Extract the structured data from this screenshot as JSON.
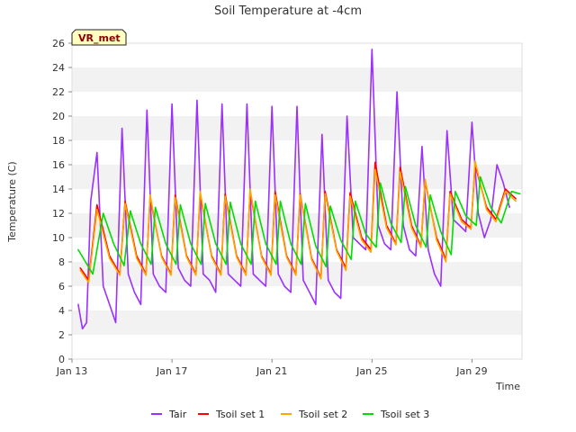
{
  "chart_data": {
    "type": "line",
    "title": "Soil Temperature at -4cm",
    "xlabel": "Time",
    "ylabel": "Temperature (C)",
    "ylim": [
      0,
      26
    ],
    "xlim": [
      "2024-01-13",
      "2024-01-31"
    ],
    "y_ticks": [
      0,
      2,
      4,
      6,
      8,
      10,
      12,
      14,
      16,
      18,
      20,
      22,
      24,
      26
    ],
    "x_ticks": [
      {
        "at": "2024-01-13",
        "label": "Jan 13"
      },
      {
        "at": "2024-01-17",
        "label": "Jan 17"
      },
      {
        "at": "2024-01-21",
        "label": "Jan 21"
      },
      {
        "at": "2024-01-25",
        "label": "Jan 25"
      },
      {
        "at": "2024-01-29",
        "label": "Jan 29"
      }
    ],
    "grid": "horizontal bands",
    "legend_position": "bottom",
    "badge": "VR_met",
    "series": [
      {
        "name": "Tair",
        "color": "#9b30ff",
        "points": [
          [
            "2024-01-13 06:00",
            4.5
          ],
          [
            "2024-01-13 10:00",
            2.5
          ],
          [
            "2024-01-13 14:00",
            3.0
          ],
          [
            "2024-01-13 18:00",
            13.0
          ],
          [
            "2024-01-14 00:00",
            17.0
          ],
          [
            "2024-01-14 06:00",
            6.0
          ],
          [
            "2024-01-14 12:00",
            4.5
          ],
          [
            "2024-01-14 18:00",
            3.0
          ],
          [
            "2024-01-15 00:00",
            19.0
          ],
          [
            "2024-01-15 06:00",
            7.0
          ],
          [
            "2024-01-15 12:00",
            5.5
          ],
          [
            "2024-01-15 18:00",
            4.5
          ],
          [
            "2024-01-16 00:00",
            20.5
          ],
          [
            "2024-01-16 06:00",
            7.0
          ],
          [
            "2024-01-16 12:00",
            6.0
          ],
          [
            "2024-01-16 18:00",
            5.5
          ],
          [
            "2024-01-17 00:00",
            21.0
          ],
          [
            "2024-01-17 06:00",
            7.5
          ],
          [
            "2024-01-17 12:00",
            6.5
          ],
          [
            "2024-01-17 18:00",
            6.0
          ],
          [
            "2024-01-18 00:00",
            21.3
          ],
          [
            "2024-01-18 06:00",
            7.0
          ],
          [
            "2024-01-18 12:00",
            6.5
          ],
          [
            "2024-01-18 18:00",
            5.5
          ],
          [
            "2024-01-19 00:00",
            21.0
          ],
          [
            "2024-01-19 06:00",
            7.0
          ],
          [
            "2024-01-19 12:00",
            6.5
          ],
          [
            "2024-01-19 18:00",
            6.0
          ],
          [
            "2024-01-20 00:00",
            21.0
          ],
          [
            "2024-01-20 06:00",
            7.0
          ],
          [
            "2024-01-20 12:00",
            6.5
          ],
          [
            "2024-01-20 18:00",
            6.0
          ],
          [
            "2024-01-21 00:00",
            20.8
          ],
          [
            "2024-01-21 06:00",
            7.0
          ],
          [
            "2024-01-21 12:00",
            6.0
          ],
          [
            "2024-01-21 18:00",
            5.5
          ],
          [
            "2024-01-22 00:00",
            20.8
          ],
          [
            "2024-01-22 06:00",
            6.5
          ],
          [
            "2024-01-22 12:00",
            5.5
          ],
          [
            "2024-01-22 18:00",
            4.5
          ],
          [
            "2024-01-23 00:00",
            18.5
          ],
          [
            "2024-01-23 06:00",
            6.5
          ],
          [
            "2024-01-23 12:00",
            5.5
          ],
          [
            "2024-01-23 18:00",
            5.0
          ],
          [
            "2024-01-24 00:00",
            20.0
          ],
          [
            "2024-01-24 06:00",
            10.0
          ],
          [
            "2024-01-24 12:00",
            9.5
          ],
          [
            "2024-01-24 18:00",
            9.0
          ],
          [
            "2024-01-25 00:00",
            25.5
          ],
          [
            "2024-01-25 06:00",
            11.0
          ],
          [
            "2024-01-25 12:00",
            9.5
          ],
          [
            "2024-01-25 18:00",
            9.0
          ],
          [
            "2024-01-26 00:00",
            22.0
          ],
          [
            "2024-01-26 06:00",
            11.0
          ],
          [
            "2024-01-26 12:00",
            9.0
          ],
          [
            "2024-01-26 18:00",
            8.5
          ],
          [
            "2024-01-27 00:00",
            17.5
          ],
          [
            "2024-01-27 06:00",
            9.0
          ],
          [
            "2024-01-27 12:00",
            7.0
          ],
          [
            "2024-01-27 18:00",
            6.0
          ],
          [
            "2024-01-28 00:00",
            18.8
          ],
          [
            "2024-01-28 06:00",
            11.5
          ],
          [
            "2024-01-28 12:00",
            11.0
          ],
          [
            "2024-01-28 18:00",
            10.5
          ],
          [
            "2024-01-29 00:00",
            19.5
          ],
          [
            "2024-01-29 06:00",
            12.0
          ],
          [
            "2024-01-29 12:00",
            10.0
          ],
          [
            "2024-01-29 18:00",
            11.5
          ],
          [
            "2024-01-30 00:00",
            16.0
          ],
          [
            "2024-01-30 06:00",
            14.5
          ],
          [
            "2024-01-30 12:00",
            12.5
          ]
        ]
      },
      {
        "name": "Tsoil set 1",
        "color": "#ff0000",
        "points": [
          [
            "2024-01-13 08:00",
            7.5
          ],
          [
            "2024-01-13 16:00",
            6.5
          ],
          [
            "2024-01-14 00:00",
            12.7
          ],
          [
            "2024-01-14 12:00",
            8.5
          ],
          [
            "2024-01-14 22:00",
            7.0
          ],
          [
            "2024-01-15 03:00",
            13.0
          ],
          [
            "2024-01-15 14:00",
            8.5
          ],
          [
            "2024-01-15 23:00",
            7.0
          ],
          [
            "2024-01-16 03:00",
            13.3
          ],
          [
            "2024-01-16 14:00",
            8.5
          ],
          [
            "2024-01-16 23:00",
            7.0
          ],
          [
            "2024-01-17 03:00",
            13.5
          ],
          [
            "2024-01-17 14:00",
            8.5
          ],
          [
            "2024-01-17 23:00",
            7.0
          ],
          [
            "2024-01-18 03:00",
            13.6
          ],
          [
            "2024-01-18 14:00",
            8.5
          ],
          [
            "2024-01-18 23:00",
            7.0
          ],
          [
            "2024-01-19 03:00",
            13.6
          ],
          [
            "2024-01-19 14:00",
            8.5
          ],
          [
            "2024-01-19 23:00",
            7.0
          ],
          [
            "2024-01-20 03:00",
            13.8
          ],
          [
            "2024-01-20 14:00",
            8.5
          ],
          [
            "2024-01-20 23:00",
            7.0
          ],
          [
            "2024-01-21 03:00",
            13.8
          ],
          [
            "2024-01-21 14:00",
            8.5
          ],
          [
            "2024-01-21 23:00",
            7.0
          ],
          [
            "2024-01-22 03:00",
            13.6
          ],
          [
            "2024-01-22 14:00",
            8.3
          ],
          [
            "2024-01-22 23:00",
            6.7
          ],
          [
            "2024-01-23 03:00",
            13.8
          ],
          [
            "2024-01-23 14:00",
            9.0
          ],
          [
            "2024-01-23 23:00",
            7.5
          ],
          [
            "2024-01-24 03:00",
            13.7
          ],
          [
            "2024-01-24 14:00",
            10.0
          ],
          [
            "2024-01-24 23:00",
            9.0
          ],
          [
            "2024-01-25 03:00",
            16.2
          ],
          [
            "2024-01-25 14:00",
            11.0
          ],
          [
            "2024-01-25 23:00",
            9.5
          ],
          [
            "2024-01-26 03:00",
            15.8
          ],
          [
            "2024-01-26 14:00",
            11.0
          ],
          [
            "2024-01-26 23:00",
            9.3
          ],
          [
            "2024-01-27 03:00",
            14.6
          ],
          [
            "2024-01-27 14:00",
            10.0
          ],
          [
            "2024-01-27 23:00",
            8.2
          ],
          [
            "2024-01-28 03:00",
            13.8
          ],
          [
            "2024-01-28 14:00",
            11.5
          ],
          [
            "2024-01-28 23:00",
            10.8
          ],
          [
            "2024-01-29 03:00",
            16.0
          ],
          [
            "2024-01-29 14:00",
            12.5
          ],
          [
            "2024-01-29 23:00",
            11.5
          ],
          [
            "2024-01-30 08:00",
            14.0
          ],
          [
            "2024-01-30 18:00",
            13.2
          ]
        ]
      },
      {
        "name": "Tsoil set 2",
        "color": "#ffa500",
        "points": [
          [
            "2024-01-13 08:00",
            7.3
          ],
          [
            "2024-01-13 16:00",
            6.3
          ],
          [
            "2024-01-14 00:00",
            12.3
          ],
          [
            "2024-01-14 12:00",
            8.3
          ],
          [
            "2024-01-14 22:00",
            6.9
          ],
          [
            "2024-01-15 03:00",
            12.8
          ],
          [
            "2024-01-15 14:00",
            8.3
          ],
          [
            "2024-01-15 23:00",
            6.9
          ],
          [
            "2024-01-16 03:00",
            13.5
          ],
          [
            "2024-01-16 14:00",
            8.4
          ],
          [
            "2024-01-16 23:00",
            6.9
          ],
          [
            "2024-01-17 03:00",
            13.3
          ],
          [
            "2024-01-17 14:00",
            8.4
          ],
          [
            "2024-01-17 23:00",
            6.9
          ],
          [
            "2024-01-18 03:00",
            13.8
          ],
          [
            "2024-01-18 14:00",
            8.4
          ],
          [
            "2024-01-18 23:00",
            6.9
          ],
          [
            "2024-01-19 03:00",
            13.4
          ],
          [
            "2024-01-19 14:00",
            8.4
          ],
          [
            "2024-01-19 23:00",
            6.9
          ],
          [
            "2024-01-20 03:00",
            14.0
          ],
          [
            "2024-01-20 14:00",
            8.4
          ],
          [
            "2024-01-20 23:00",
            6.9
          ],
          [
            "2024-01-21 03:00",
            13.5
          ],
          [
            "2024-01-21 14:00",
            8.4
          ],
          [
            "2024-01-21 23:00",
            6.9
          ],
          [
            "2024-01-22 03:00",
            13.5
          ],
          [
            "2024-01-22 14:00",
            8.2
          ],
          [
            "2024-01-22 23:00",
            6.6
          ],
          [
            "2024-01-23 03:00",
            13.6
          ],
          [
            "2024-01-23 14:00",
            8.9
          ],
          [
            "2024-01-23 23:00",
            7.3
          ],
          [
            "2024-01-24 03:00",
            13.4
          ],
          [
            "2024-01-24 14:00",
            9.8
          ],
          [
            "2024-01-24 23:00",
            8.8
          ],
          [
            "2024-01-25 03:00",
            15.6
          ],
          [
            "2024-01-25 14:00",
            10.8
          ],
          [
            "2024-01-25 23:00",
            9.4
          ],
          [
            "2024-01-26 03:00",
            15.4
          ],
          [
            "2024-01-26 14:00",
            10.8
          ],
          [
            "2024-01-26 23:00",
            9.2
          ],
          [
            "2024-01-27 03:00",
            14.8
          ],
          [
            "2024-01-27 14:00",
            9.8
          ],
          [
            "2024-01-27 23:00",
            8.0
          ],
          [
            "2024-01-28 03:00",
            13.6
          ],
          [
            "2024-01-28 14:00",
            11.3
          ],
          [
            "2024-01-28 23:00",
            10.7
          ],
          [
            "2024-01-29 03:00",
            16.3
          ],
          [
            "2024-01-29 14:00",
            12.3
          ],
          [
            "2024-01-29 23:00",
            11.3
          ],
          [
            "2024-01-30 08:00",
            13.8
          ],
          [
            "2024-01-30 18:00",
            13.0
          ]
        ]
      },
      {
        "name": "Tsoil set 3",
        "color": "#00dd00",
        "points": [
          [
            "2024-01-13 06:00",
            9.0
          ],
          [
            "2024-01-13 20:00",
            7.0
          ],
          [
            "2024-01-14 06:00",
            12.0
          ],
          [
            "2024-01-14 16:00",
            9.5
          ],
          [
            "2024-01-15 02:00",
            7.7
          ],
          [
            "2024-01-15 08:00",
            12.2
          ],
          [
            "2024-01-15 18:00",
            9.5
          ],
          [
            "2024-01-16 04:00",
            7.8
          ],
          [
            "2024-01-16 08:00",
            12.5
          ],
          [
            "2024-01-16 18:00",
            9.5
          ],
          [
            "2024-01-17 04:00",
            7.8
          ],
          [
            "2024-01-17 08:00",
            12.7
          ],
          [
            "2024-01-17 18:00",
            9.5
          ],
          [
            "2024-01-18 04:00",
            7.8
          ],
          [
            "2024-01-18 08:00",
            12.8
          ],
          [
            "2024-01-18 18:00",
            9.5
          ],
          [
            "2024-01-19 04:00",
            7.8
          ],
          [
            "2024-01-19 08:00",
            12.9
          ],
          [
            "2024-01-19 18:00",
            9.5
          ],
          [
            "2024-01-20 04:00",
            7.8
          ],
          [
            "2024-01-20 08:00",
            13.0
          ],
          [
            "2024-01-20 18:00",
            9.5
          ],
          [
            "2024-01-21 04:00",
            7.8
          ],
          [
            "2024-01-21 08:00",
            13.0
          ],
          [
            "2024-01-21 18:00",
            9.5
          ],
          [
            "2024-01-22 04:00",
            7.8
          ],
          [
            "2024-01-22 08:00",
            12.8
          ],
          [
            "2024-01-22 18:00",
            9.3
          ],
          [
            "2024-01-23 04:00",
            7.6
          ],
          [
            "2024-01-23 08:00",
            12.6
          ],
          [
            "2024-01-23 18:00",
            9.8
          ],
          [
            "2024-01-24 04:00",
            8.2
          ],
          [
            "2024-01-24 08:00",
            13.0
          ],
          [
            "2024-01-24 18:00",
            10.3
          ],
          [
            "2024-01-25 04:00",
            9.2
          ],
          [
            "2024-01-25 08:00",
            14.5
          ],
          [
            "2024-01-25 18:00",
            11.2
          ],
          [
            "2024-01-26 04:00",
            9.6
          ],
          [
            "2024-01-26 08:00",
            14.2
          ],
          [
            "2024-01-26 18:00",
            11.0
          ],
          [
            "2024-01-27 04:00",
            9.2
          ],
          [
            "2024-01-27 08:00",
            13.5
          ],
          [
            "2024-01-27 18:00",
            10.5
          ],
          [
            "2024-01-28 04:00",
            8.6
          ],
          [
            "2024-01-28 08:00",
            13.8
          ],
          [
            "2024-01-28 18:00",
            11.8
          ],
          [
            "2024-01-29 04:00",
            11.0
          ],
          [
            "2024-01-29 08:00",
            15.0
          ],
          [
            "2024-01-29 18:00",
            12.5
          ],
          [
            "2024-01-30 04:00",
            11.2
          ],
          [
            "2024-01-30 14:00",
            13.8
          ],
          [
            "2024-01-30 22:00",
            13.6
          ]
        ]
      }
    ]
  }
}
